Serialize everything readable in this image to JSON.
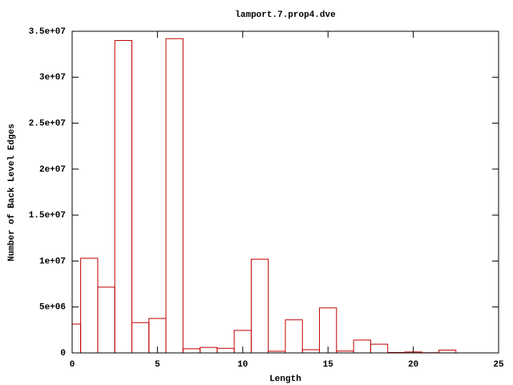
{
  "chart_data": {
    "type": "histogram",
    "title": "lamport.7.prop4.dve",
    "xlabel": "Length",
    "ylabel": "Number of Back Level Edges",
    "bins": [
      -0.5,
      0.5,
      1.5,
      2.5,
      3.5,
      4.5,
      5.5,
      6.5,
      7.5,
      8.5,
      9.5,
      10.5,
      11.5,
      12.5,
      13.5,
      14.5,
      15.5,
      16.5,
      17.5,
      18.5,
      19.5,
      20.5,
      21.5,
      22.5
    ],
    "values": [
      3140000,
      10300000,
      7160000,
      34000000,
      3300000,
      3750000,
      34200000,
      450000,
      600000,
      500000,
      2450000,
      10200000,
      180000,
      3600000,
      350000,
      4900000,
      200000,
      1400000,
      950000,
      50000,
      100000,
      20000,
      300000
    ],
    "color": "#c00000",
    "xlim": [
      0,
      25
    ],
    "xticks": [
      0,
      5,
      10,
      15,
      20,
      25
    ],
    "ylim": [
      0,
      35000000
    ],
    "yticks": [
      0,
      {
        "value": 5000000,
        "label": "5e+06"
      },
      {
        "value": 10000000,
        "label": "1e+07"
      },
      {
        "value": 15000000,
        "label": "1.5e+07"
      },
      {
        "value": 20000000,
        "label": "2e+07"
      },
      {
        "value": 25000000,
        "label": "2.5e+07"
      },
      {
        "value": 30000000,
        "label": "3e+07"
      },
      {
        "value": 35000000,
        "label": "3.5e+07"
      }
    ]
  }
}
